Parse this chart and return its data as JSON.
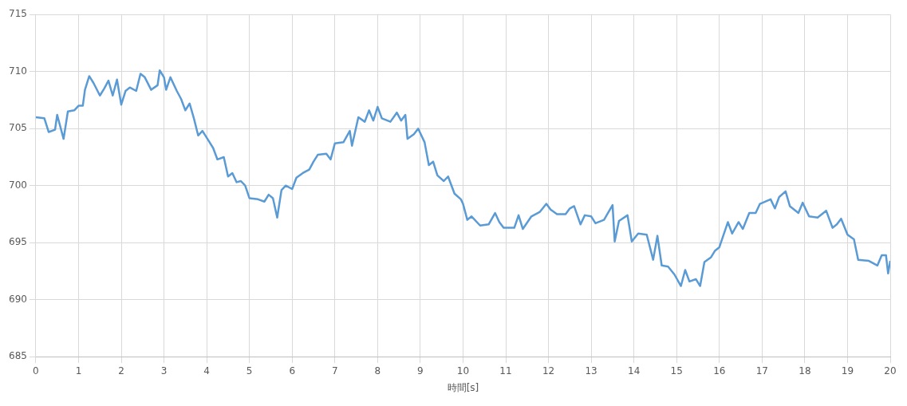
{
  "chart_data": {
    "type": "line",
    "xlabel": "時間[s]",
    "xlim": [
      0,
      20
    ],
    "xticks": [
      0,
      1,
      2,
      3,
      4,
      5,
      6,
      7,
      8,
      9,
      10,
      11,
      12,
      13,
      14,
      15,
      16,
      17,
      18,
      19,
      20
    ],
    "ylim": [
      685,
      715
    ],
    "yticks": [
      685,
      690,
      695,
      700,
      705,
      710,
      715
    ],
    "grid": true,
    "legend": false,
    "marker": "none",
    "line_style": "solid",
    "series": [
      {
        "color": "#5b9bd5",
        "x": [
          0,
          0.2,
          0.3,
          0.45,
          0.5,
          0.6,
          0.65,
          0.75,
          0.9,
          1.0,
          1.1,
          1.15,
          1.25,
          1.35,
          1.5,
          1.6,
          1.7,
          1.8,
          1.9,
          2.0,
          2.1,
          2.2,
          2.35,
          2.45,
          2.55,
          2.7,
          2.85,
          2.9,
          3.0,
          3.05,
          3.15,
          3.3,
          3.4,
          3.5,
          3.6,
          3.7,
          3.8,
          3.9,
          4.05,
          4.15,
          4.25,
          4.4,
          4.5,
          4.6,
          4.7,
          4.8,
          4.9,
          5.0,
          5.2,
          5.35,
          5.45,
          5.55,
          5.65,
          5.75,
          5.85,
          6.0,
          6.1,
          6.25,
          6.4,
          6.5,
          6.6,
          6.8,
          6.9,
          7.0,
          7.2,
          7.35,
          7.4,
          7.55,
          7.7,
          7.8,
          7.9,
          8.0,
          8.1,
          8.3,
          8.45,
          8.55,
          8.65,
          8.7,
          8.85,
          8.95,
          9.1,
          9.2,
          9.3,
          9.4,
          9.55,
          9.65,
          9.8,
          9.95,
          10.0,
          10.1,
          10.2,
          10.4,
          10.6,
          10.75,
          10.85,
          10.95,
          11.2,
          11.3,
          11.4,
          11.6,
          11.8,
          11.95,
          12.05,
          12.2,
          12.4,
          12.5,
          12.6,
          12.75,
          12.85,
          13.0,
          13.1,
          13.3,
          13.5,
          13.55,
          13.65,
          13.85,
          13.95,
          14.1,
          14.3,
          14.45,
          14.55,
          14.65,
          14.8,
          14.95,
          15.1,
          15.2,
          15.3,
          15.45,
          15.55,
          15.65,
          15.8,
          15.9,
          16.0,
          16.2,
          16.3,
          16.45,
          16.55,
          16.7,
          16.85,
          16.95,
          17.2,
          17.3,
          17.4,
          17.55,
          17.65,
          17.85,
          17.95,
          18.1,
          18.3,
          18.5,
          18.65,
          18.75,
          18.85,
          19.0,
          19.15,
          19.25,
          19.5,
          19.7,
          19.8,
          19.9,
          19.95,
          20.0
        ],
        "values": [
          706.0,
          705.9,
          704.7,
          704.9,
          706.2,
          704.8,
          704.1,
          706.5,
          706.6,
          707.0,
          707.0,
          708.4,
          709.6,
          709.0,
          707.9,
          708.5,
          709.2,
          707.9,
          709.3,
          707.1,
          708.3,
          708.6,
          708.3,
          709.8,
          709.5,
          708.4,
          708.8,
          710.1,
          709.5,
          708.4,
          709.5,
          708.3,
          707.6,
          706.6,
          707.2,
          705.9,
          704.4,
          704.8,
          703.9,
          703.3,
          702.3,
          702.5,
          700.8,
          701.1,
          700.3,
          700.4,
          700.0,
          698.9,
          698.8,
          698.6,
          699.2,
          698.9,
          697.2,
          699.6,
          700.0,
          699.7,
          700.7,
          701.1,
          701.4,
          702.1,
          702.7,
          702.8,
          702.3,
          703.7,
          703.8,
          704.8,
          703.5,
          706.0,
          705.6,
          706.6,
          705.7,
          706.9,
          705.9,
          705.6,
          706.4,
          705.7,
          706.2,
          704.1,
          704.5,
          705.0,
          703.8,
          701.8,
          702.1,
          700.9,
          700.4,
          700.8,
          699.3,
          698.8,
          698.4,
          697.0,
          697.3,
          696.5,
          696.6,
          697.6,
          696.8,
          696.3,
          696.3,
          697.4,
          696.2,
          697.3,
          697.7,
          698.4,
          697.9,
          697.5,
          697.5,
          698.0,
          698.2,
          696.6,
          697.4,
          697.3,
          696.7,
          697.0,
          698.3,
          695.1,
          696.9,
          697.4,
          695.1,
          695.8,
          695.7,
          693.5,
          695.6,
          693.0,
          692.9,
          692.2,
          691.2,
          692.6,
          691.6,
          691.8,
          691.2,
          693.3,
          693.7,
          694.3,
          694.6,
          696.8,
          695.8,
          696.8,
          696.2,
          697.6,
          697.6,
          698.4,
          698.8,
          698.0,
          699.0,
          699.5,
          698.2,
          697.6,
          698.5,
          697.3,
          697.2,
          697.8,
          696.3,
          696.6,
          697.1,
          695.7,
          695.3,
          693.5,
          693.4,
          693.0,
          693.9,
          693.9,
          692.3,
          693.4
        ]
      }
    ]
  }
}
